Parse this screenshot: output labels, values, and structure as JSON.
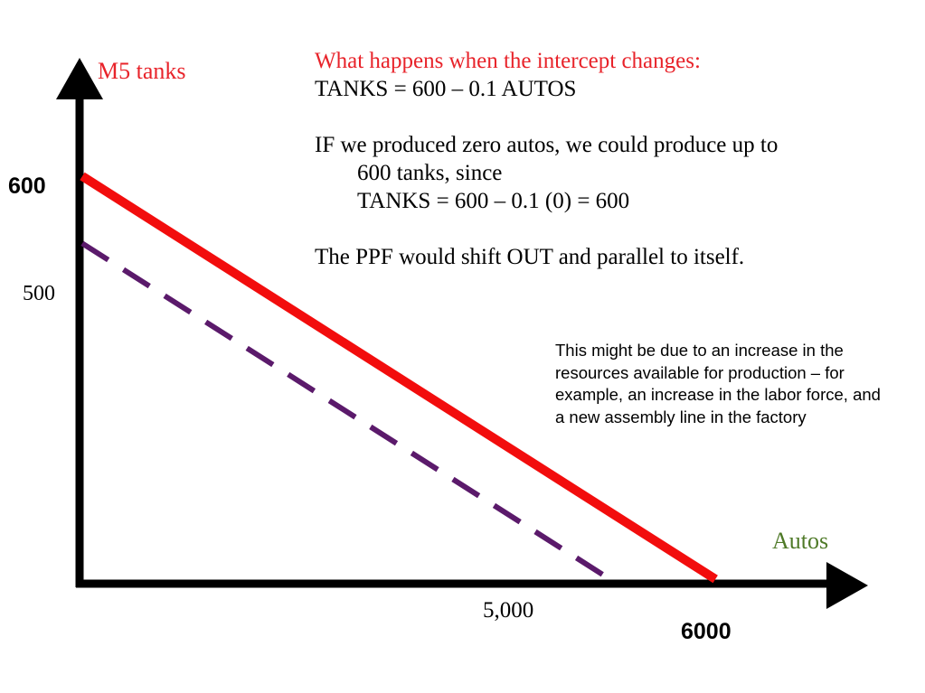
{
  "colors": {
    "new_ppf": "#f20d0d",
    "old_ppf": "#5b1a6b",
    "y_axis_label": "#e8232a",
    "x_axis_label": "#4f7a28",
    "heading": "#e8232a",
    "axes": "#000000"
  },
  "text": {
    "heading": "What happens when the  intercept changes:",
    "equation": "TANKS = 600 – 0.1 AUTOS",
    "para1_line1": "IF we produced zero autos, we could produce up to",
    "para1_line2": "600 tanks, since",
    "para1_line3": "TANKS = 600 – 0.1 (0) = 600",
    "para2": "The PPF would shift OUT and parallel to itself.",
    "note": "This might be due to an increase in the resources available for production – for example, an increase in the labor force, and a new assembly line in the factory"
  },
  "chart_data": {
    "type": "line",
    "xlabel": "Autos",
    "ylabel": "M5 tanks",
    "xlim": [
      0,
      6500
    ],
    "ylim": [
      0,
      680
    ],
    "y_ticks": [
      {
        "value": 600,
        "label": "600",
        "bold": true
      },
      {
        "value": 500,
        "label": "500",
        "bold": false
      }
    ],
    "x_ticks": [
      {
        "value": 5000,
        "label": "5,000",
        "bold": false
      },
      {
        "value": 6000,
        "label": "6000",
        "bold": true
      }
    ],
    "series": [
      {
        "key": "new",
        "style": "solid",
        "color": "#f20d0d",
        "x": [
          0,
          6000
        ],
        "y": [
          600,
          0
        ]
      },
      {
        "key": "old",
        "style": "dashed",
        "color": "#5b1a6b",
        "x": [
          0,
          5000
        ],
        "y": [
          500,
          0
        ]
      }
    ]
  }
}
